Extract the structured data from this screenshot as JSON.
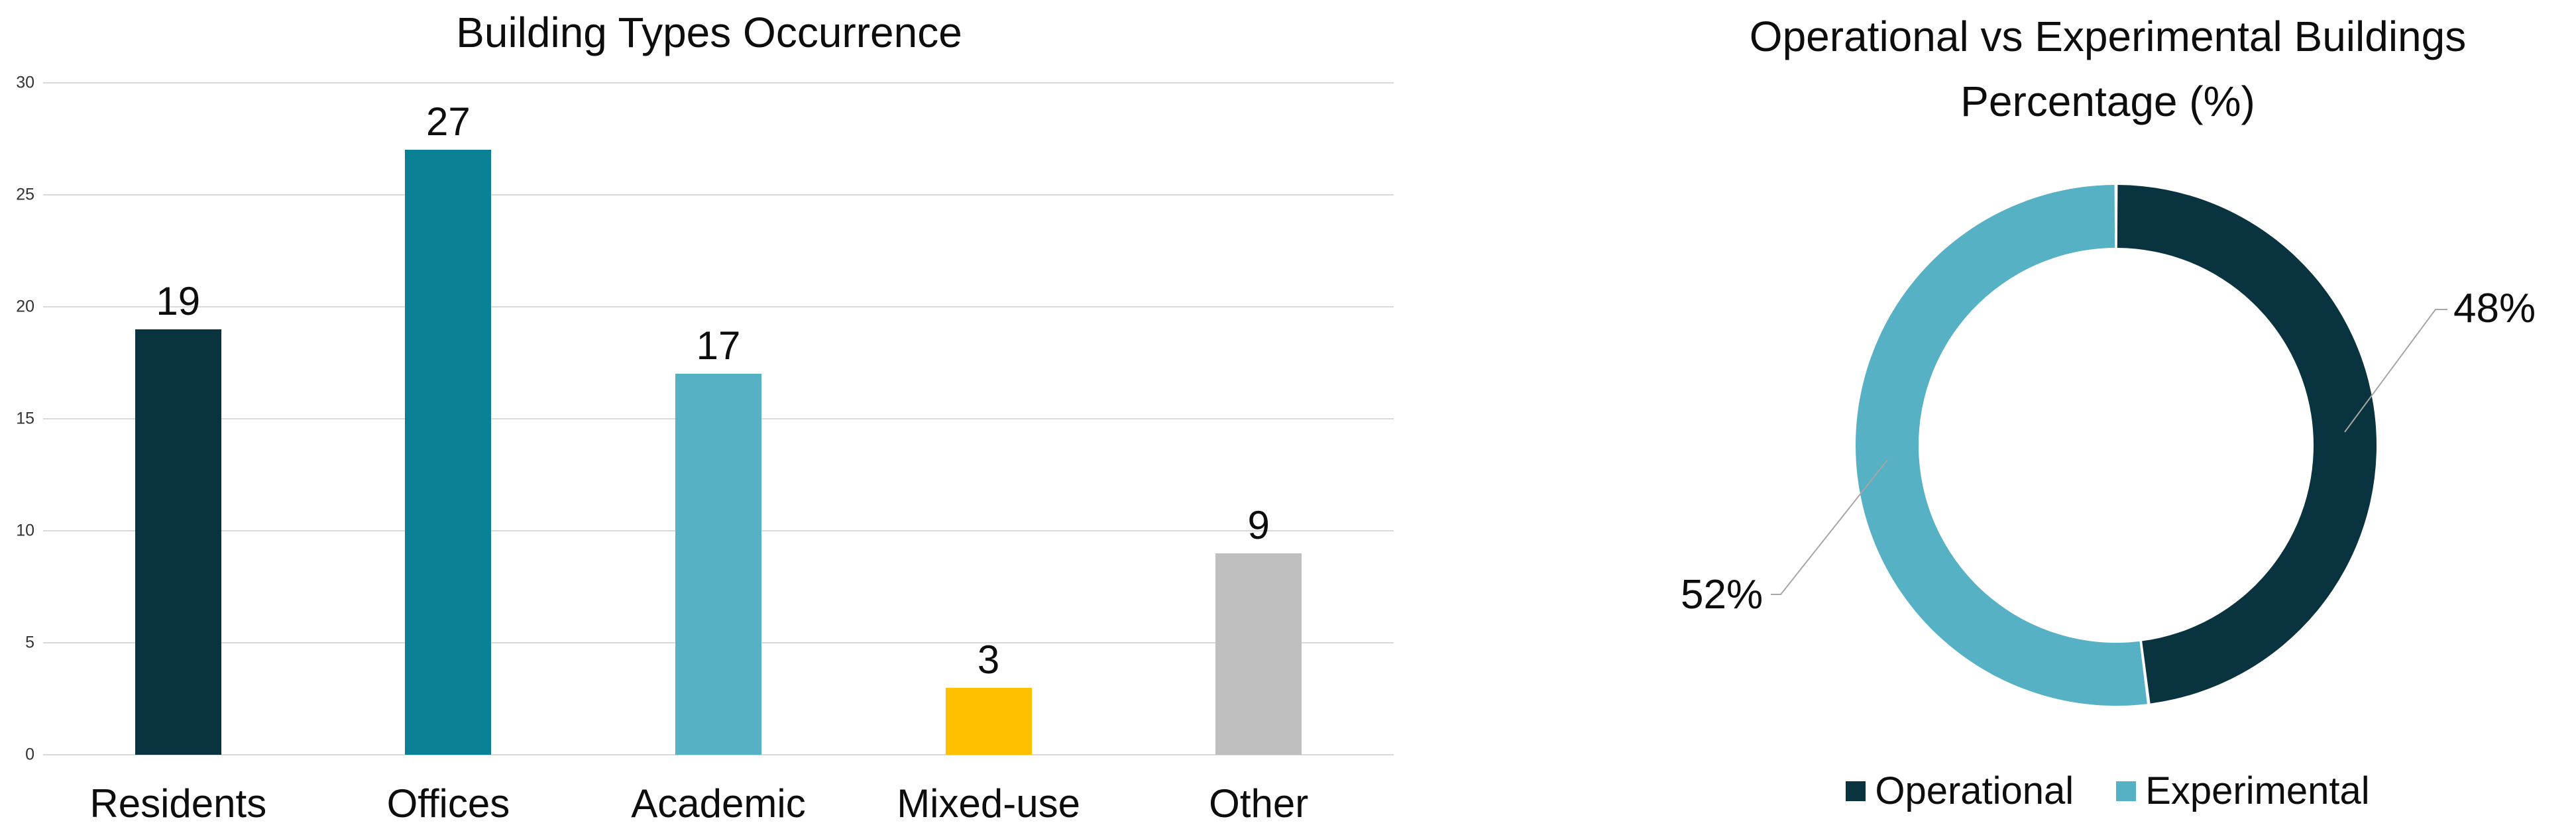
{
  "page": {
    "background": "#ffffff"
  },
  "chart_data": [
    {
      "type": "bar",
      "title": "Building Types Occurrence",
      "categories": [
        "Residents",
        "Offices",
        "Academic",
        "Mixed-use",
        "Other"
      ],
      "values": [
        19,
        27,
        17,
        3,
        9
      ],
      "data_labels": [
        "19",
        "27",
        "17",
        "3",
        "9"
      ],
      "bar_colors": [
        "#09343f",
        "#0a8094",
        "#56b1c5",
        "#ffc000",
        "#bfbfbf"
      ],
      "xlabel": "",
      "ylabel": "",
      "ylim": [
        0,
        30
      ],
      "yticks": [
        0,
        5,
        10,
        15,
        20,
        25,
        30
      ],
      "grid": "horizontal",
      "gridline_color": "#d9d9d9",
      "tick_label_color": "#333333",
      "legend_position": "none"
    },
    {
      "type": "pie",
      "subtype": "donut",
      "title_lines": [
        "Operational vs Experimental Buildings",
        "Percentage (%)"
      ],
      "labels": [
        "Operational",
        "Experimental"
      ],
      "values": [
        48,
        52
      ],
      "slice_labels": [
        "48%",
        "52%"
      ],
      "colors": [
        "#09343f",
        "#56b1c5"
      ],
      "start_angle_deg": 0,
      "direction": "clockwise",
      "legend_position": "bottom",
      "leader_line_color": "#a6a6a6"
    }
  ]
}
